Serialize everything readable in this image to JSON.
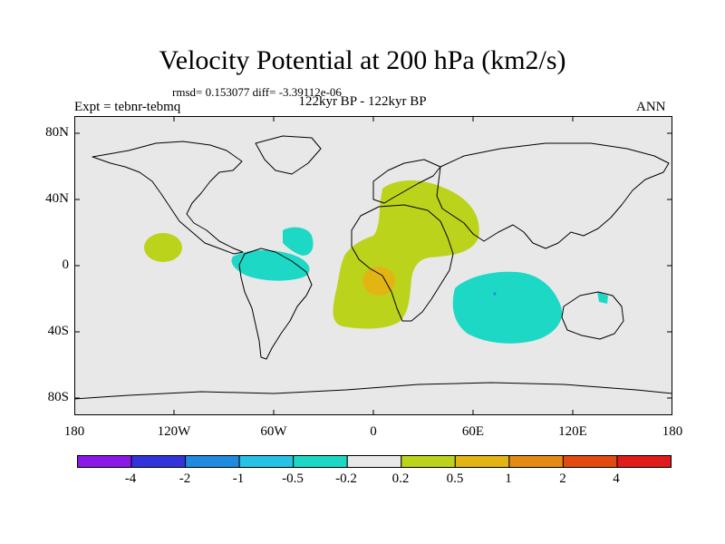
{
  "header": {
    "title": "Velocity Potential at 200 hPa (km2/s)",
    "stats": "rmsd= 0.153077 diff= -3.39112e-06",
    "expt": "Expt = tebnr-tebmq",
    "period": "122kyr BP - 122kyr BP",
    "season": "ANN"
  },
  "axes": {
    "lat_labels": [
      "80N",
      "40N",
      "0",
      "40S",
      "80S"
    ],
    "lon_labels": [
      "180",
      "120W",
      "60W",
      "0",
      "60E",
      "120E",
      "180"
    ]
  },
  "colorbar": {
    "labels": [
      "-4",
      "-2",
      "-1",
      "-0.5",
      "-0.2",
      "0.2",
      "0.5",
      "1",
      "2",
      "4"
    ],
    "colors": [
      "#8a18e6",
      "#3333dd",
      "#1f8bdf",
      "#27c3e6",
      "#1ed8c6",
      "#e8e8e8",
      "#bcd31c",
      "#e2b513",
      "#e58a14",
      "#e24a10",
      "#e11a1a"
    ]
  },
  "regions": [
    {
      "name": "north-pacific-positive",
      "level": "0.2",
      "color": "#bcd31c"
    },
    {
      "name": "caribbean-negative",
      "level": "-0.2",
      "color": "#1ed8c6"
    },
    {
      "name": "north-atlantic-negative",
      "level": "-0.2",
      "color": "#1ed8c6"
    },
    {
      "name": "africa-europe-positive",
      "level": "0.2",
      "color": "#bcd31c"
    },
    {
      "name": "gulf-of-guinea-max",
      "level": "0.5",
      "color": "#e2b513"
    },
    {
      "name": "indian-ocean-negative",
      "level": "-0.2",
      "color": "#1ed8c6"
    },
    {
      "name": "australia-negative",
      "level": "-0.2",
      "color": "#1ed8c6"
    }
  ]
}
